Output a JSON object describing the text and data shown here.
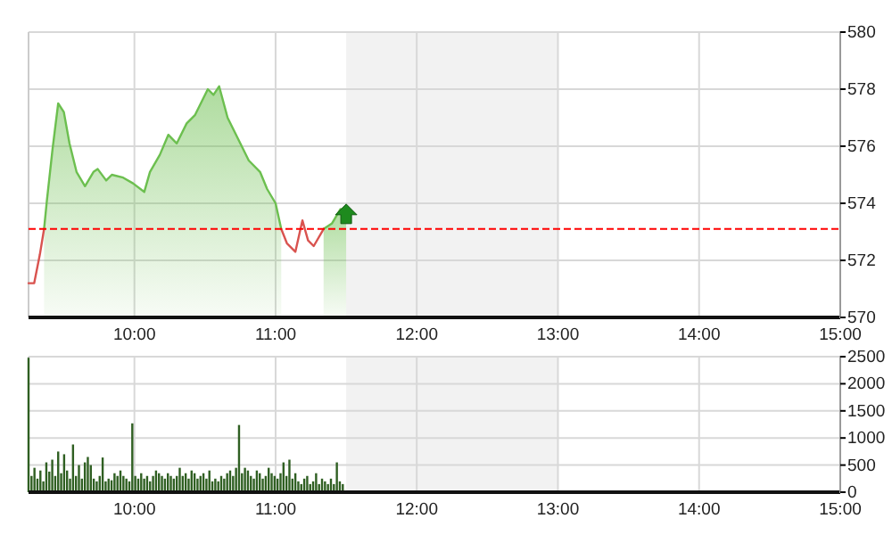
{
  "chart_data": [
    {
      "type": "area",
      "xlim": [
        9.25,
        15
      ],
      "ylim": [
        570,
        580
      ],
      "xticks": [
        {
          "value": 10,
          "label": "10:00"
        },
        {
          "value": 11,
          "label": "11:00"
        },
        {
          "value": 12,
          "label": "12:00"
        },
        {
          "value": 13,
          "label": "13:00"
        },
        {
          "value": 14,
          "label": "14:00"
        },
        {
          "value": 15,
          "label": "15:00"
        }
      ],
      "yticks": [
        570,
        572,
        574,
        576,
        578,
        580
      ],
      "grid": true,
      "series": [
        {
          "color": "#6cbf4f",
          "x": [
            9.36,
            9.38,
            9.42,
            9.46,
            9.5,
            9.54,
            9.59,
            9.65,
            9.71,
            9.74,
            9.8,
            9.84,
            9.92,
            9.99,
            10.07,
            10.11,
            10.18,
            10.24,
            10.3,
            10.37,
            10.43,
            10.52,
            10.56,
            10.6,
            10.66,
            10.75,
            10.81,
            10.89,
            10.94,
            11.0,
            11.04
          ],
          "values": [
            573.1,
            574.1,
            575.9,
            577.5,
            577.2,
            576.1,
            575.1,
            574.6,
            575.1,
            575.2,
            574.8,
            575.0,
            574.9,
            574.7,
            574.4,
            575.1,
            575.7,
            576.4,
            576.1,
            576.8,
            577.1,
            578.0,
            577.8,
            578.1,
            577.0,
            576.1,
            575.5,
            575.1,
            574.5,
            574.0,
            573.1
          ]
        },
        {
          "color": "#6cbf4f",
          "x": [
            11.34,
            11.4,
            11.46,
            11.5
          ],
          "values": [
            573.1,
            573.3,
            573.8,
            573.6
          ]
        },
        {
          "type": "line",
          "color": "#d9534f",
          "x": [
            9.25,
            9.29,
            9.33,
            9.36
          ],
          "values": [
            571.2,
            571.2,
            572.2,
            573.1
          ]
        },
        {
          "type": "line",
          "color": "#d9534f",
          "x": [
            11.04,
            11.08,
            11.14,
            11.19,
            11.23,
            11.27,
            11.34
          ],
          "values": [
            573.1,
            572.6,
            572.3,
            573.4,
            572.7,
            572.5,
            573.1
          ]
        }
      ],
      "ref_lines": [
        {
          "axis": "y",
          "value": 573.1,
          "color": "#ff0000",
          "line_style": "dashed"
        }
      ],
      "bands": [
        {
          "axis": "x",
          "from": 11.5,
          "to": 13,
          "color": "#f2f2f2"
        }
      ]
    },
    {
      "type": "bar",
      "xlim": [
        9.25,
        15
      ],
      "ylim": [
        0,
        2500
      ],
      "color": "#2f5f22",
      "xticks": [
        {
          "value": 10,
          "label": "10:00"
        },
        {
          "value": 11,
          "label": "11:00"
        },
        {
          "value": 12,
          "label": "12:00"
        },
        {
          "value": 13,
          "label": "13:00"
        },
        {
          "value": 14,
          "label": "14:00"
        },
        {
          "value": 15,
          "label": "15:00"
        }
      ],
      "yticks": [
        0,
        500,
        1000,
        1500,
        2000,
        2500
      ],
      "grid": true,
      "x": [
        9.25,
        9.271,
        9.292,
        9.313,
        9.334,
        9.355,
        9.376,
        9.397,
        9.418,
        9.439,
        9.46,
        9.481,
        9.502,
        9.523,
        9.544,
        9.565,
        9.586,
        9.607,
        9.628,
        9.649,
        9.67,
        9.691,
        9.712,
        9.733,
        9.754,
        9.775,
        9.796,
        9.817,
        9.838,
        9.859,
        9.88,
        9.901,
        9.922,
        9.943,
        9.964,
        9.985,
        10.006,
        10.027,
        10.048,
        10.069,
        10.09,
        10.111,
        10.132,
        10.153,
        10.174,
        10.195,
        10.216,
        10.237,
        10.258,
        10.279,
        10.3,
        10.321,
        10.342,
        10.363,
        10.384,
        10.405,
        10.426,
        10.447,
        10.468,
        10.489,
        10.51,
        10.531,
        10.552,
        10.573,
        10.594,
        10.615,
        10.636,
        10.657,
        10.678,
        10.699,
        10.72,
        10.741,
        10.762,
        10.783,
        10.804,
        10.825,
        10.846,
        10.867,
        10.888,
        10.909,
        10.93,
        10.951,
        10.972,
        10.993,
        11.014,
        11.035,
        11.056,
        11.077,
        11.098,
        11.119,
        11.14,
        11.161,
        11.182,
        11.203,
        11.224,
        11.245,
        11.266,
        11.287,
        11.308,
        11.329,
        11.35,
        11.371,
        11.392,
        11.413,
        11.434,
        11.455,
        11.476
      ],
      "values": [
        2480,
        300,
        450,
        250,
        400,
        200,
        550,
        380,
        600,
        300,
        750,
        350,
        700,
        400,
        250,
        880,
        300,
        500,
        250,
        550,
        650,
        500,
        250,
        200,
        300,
        640,
        200,
        250,
        220,
        350,
        300,
        400,
        300,
        250,
        200,
        1270,
        300,
        250,
        350,
        250,
        300,
        200,
        300,
        400,
        350,
        300,
        250,
        350,
        300,
        250,
        300,
        450,
        300,
        350,
        250,
        400,
        350,
        250,
        300,
        350,
        250,
        400,
        200,
        250,
        200,
        300,
        250,
        350,
        400,
        300,
        450,
        1240,
        350,
        450,
        400,
        300,
        250,
        400,
        350,
        250,
        300,
        450,
        350,
        300,
        250,
        350,
        550,
        300,
        600,
        250,
        350,
        200,
        150,
        250,
        300,
        150,
        200,
        350,
        150,
        250,
        200,
        150,
        250,
        150,
        550,
        200,
        150
      ],
      "bands": [
        {
          "axis": "x",
          "from": 11.5,
          "to": 13,
          "color": "#f2f2f2"
        }
      ]
    }
  ]
}
